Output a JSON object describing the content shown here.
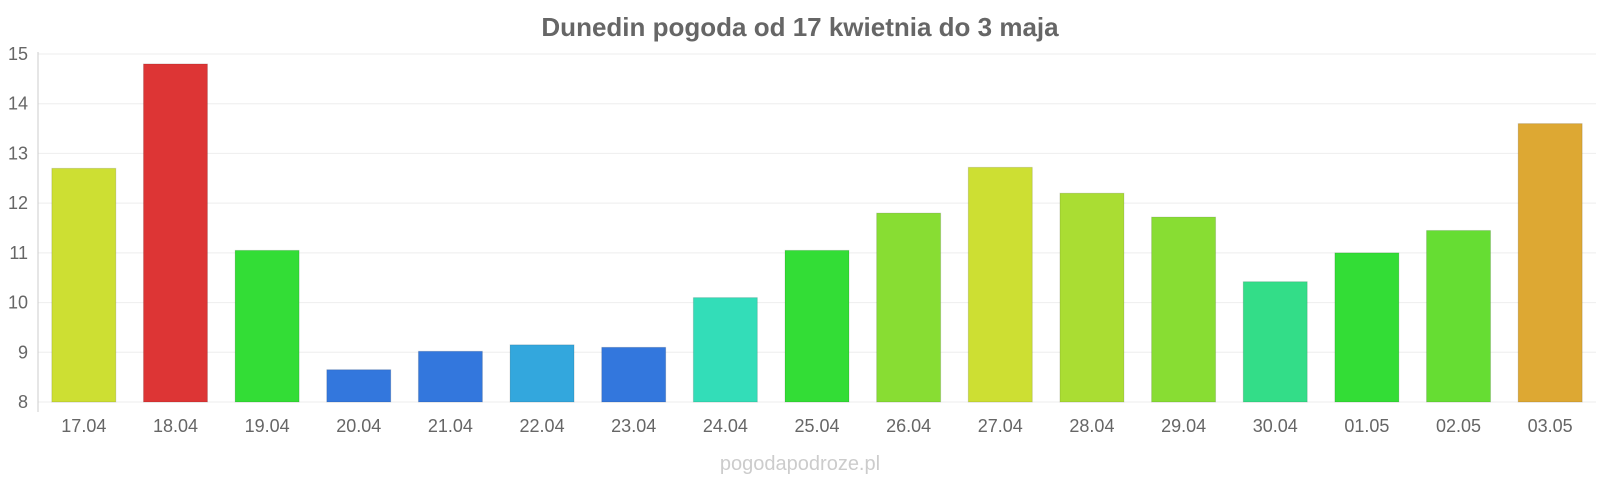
{
  "chart_data": {
    "type": "bar",
    "title": "Dunedin pogoda od 17 kwietnia do 3 maja",
    "xlabel": "",
    "ylabel": "",
    "categories": [
      "17.04",
      "18.04",
      "19.04",
      "20.04",
      "21.04",
      "22.04",
      "23.04",
      "24.04",
      "25.04",
      "26.04",
      "27.04",
      "28.04",
      "29.04",
      "30.04",
      "01.05",
      "02.05",
      "03.05"
    ],
    "values": [
      12.7,
      14.8,
      11.05,
      8.65,
      9.02,
      9.15,
      9.1,
      10.1,
      11.05,
      11.8,
      12.72,
      12.2,
      11.72,
      10.42,
      11.0,
      11.45,
      13.6
    ],
    "colors": [
      "#cddf33",
      "#dd3535",
      "#33dd36",
      "#3377dd",
      "#3377dd",
      "#33a7dd",
      "#3377dd",
      "#33ddb8",
      "#33dd36",
      "#88dd33",
      "#cddf33",
      "#aadd33",
      "#88dd33",
      "#33dd88",
      "#33dd36",
      "#66dd33",
      "#dda833"
    ],
    "ylim": [
      8,
      15
    ],
    "yticks": [
      "8",
      "9",
      "10",
      "11",
      "12",
      "13",
      "14",
      "15"
    ],
    "grid": true,
    "legend": "none"
  },
  "watermark": "pogodapodroze.pl"
}
